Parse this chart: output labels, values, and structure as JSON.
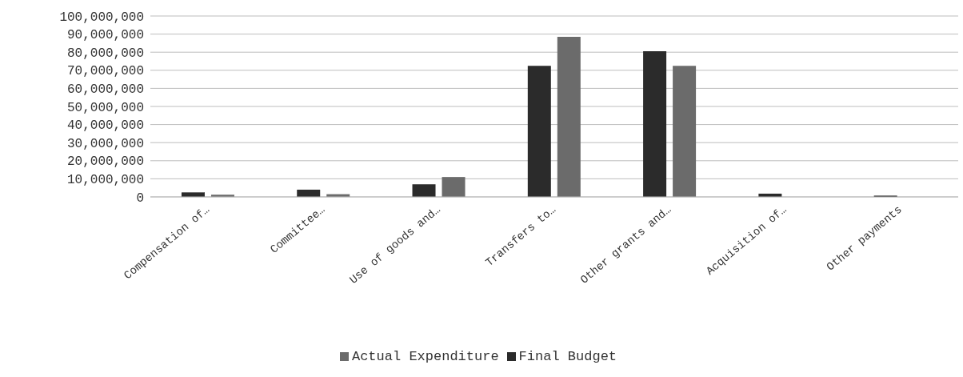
{
  "chart_data": {
    "type": "bar",
    "categories": [
      "Compensation of…",
      "Committee…",
      "Use of goods and…",
      "Transfers to…",
      "Other grants and…",
      "Acquisition of…",
      "Other payments"
    ],
    "series": [
      {
        "name": "Final Budget",
        "color": "#2b2b2b",
        "values": [
          2500000,
          4000000,
          7000000,
          72500000,
          80500000,
          1800000,
          700000
        ]
      },
      {
        "name": "Actual Expenditure",
        "color": "#6b6b6b",
        "values": [
          1200000,
          1500000,
          11000000,
          88500000,
          72500000,
          0,
          0
        ]
      }
    ],
    "ylim": [
      0,
      100000000
    ],
    "yticks": [
      {
        "value": 0,
        "label": "0"
      },
      {
        "value": 10000000,
        "label": "10,000,000"
      },
      {
        "value": 20000000,
        "label": "20,000,000"
      },
      {
        "value": 30000000,
        "label": "30,000,000"
      },
      {
        "value": 40000000,
        "label": "40,000,000"
      },
      {
        "value": 50000000,
        "label": "50,000,000"
      },
      {
        "value": 60000000,
        "label": "60,000,000"
      },
      {
        "value": 70000000,
        "label": "70,000,000"
      },
      {
        "value": 80000000,
        "label": "80,000,000"
      },
      {
        "value": 90000000,
        "label": "90,000,000"
      },
      {
        "value": 100000000,
        "label": "100,000,000"
      }
    ],
    "grid": "y",
    "legend": "bottom"
  }
}
